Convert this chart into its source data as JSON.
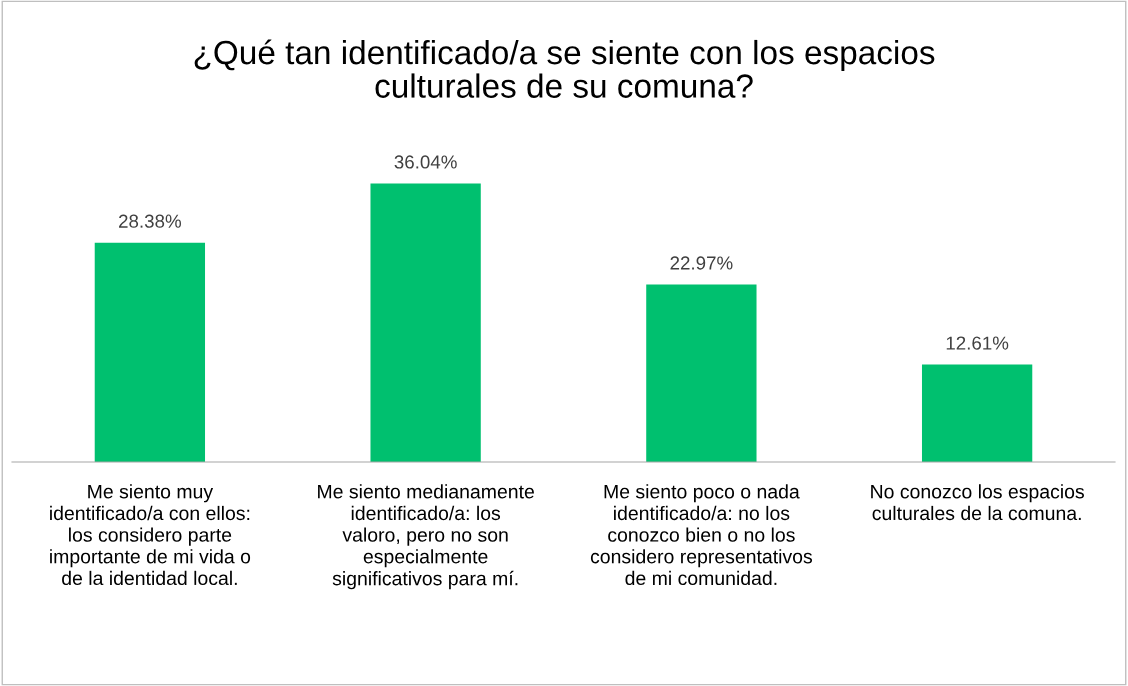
{
  "chart_data": {
    "type": "bar",
    "title": "¿Qué tan identificado/a se siente con los espacios culturales de su comuna?",
    "categories": [
      "Me siento muy identificado/a con ellos: los considero parte importante de mi vida o de la identidad local.",
      "Me siento medianamente identificado/a: los valoro, pero no son especialmente significativos para mí.",
      "Me siento poco o nada identificado/a: no los conozco bien o no los considero representativos de mi comunidad.",
      "No conozco los espacios culturales de la comuna."
    ],
    "values": [
      28.38,
      36.04,
      22.97,
      12.61
    ],
    "value_labels": [
      "28.38%",
      "36.04%",
      "22.97%",
      "12.61%"
    ],
    "color": "#00c06f",
    "tick_labels": "x"
  }
}
